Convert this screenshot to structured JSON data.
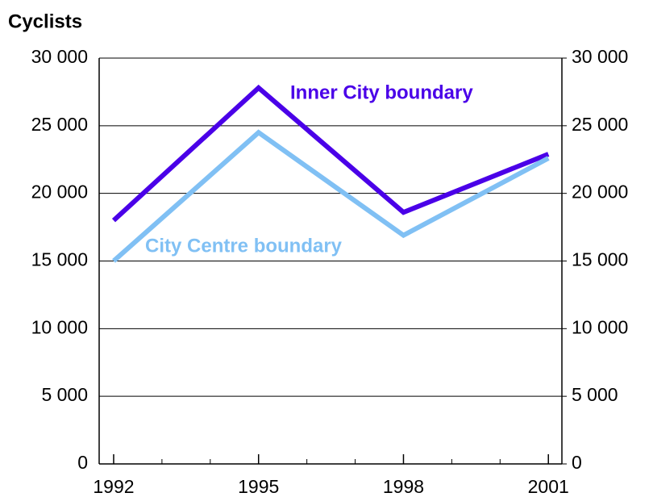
{
  "chart_data": {
    "type": "line",
    "title": "Cyclists",
    "x": [
      1992,
      1995,
      1998,
      2001
    ],
    "series": [
      {
        "name": "Inner City boundary",
        "color": "#4a00e8",
        "values": [
          18000,
          27800,
          18600,
          22900
        ]
      },
      {
        "name": "City Centre boundary",
        "color": "#80c0f4",
        "values": [
          15000,
          24500,
          16900,
          22600
        ]
      }
    ],
    "xlim": [
      1991.7,
      2001.28
    ],
    "xticks": [
      1992,
      1995,
      1998,
      2001
    ],
    "xminorticks": [
      1993,
      1994,
      1996,
      1997,
      1999,
      2000
    ],
    "ylim": [
      0,
      30000
    ],
    "yticks": [
      0,
      {
        "value": 5000,
        "label": "5 000"
      },
      {
        "value": 10000,
        "label": "10 000"
      },
      {
        "value": 15000,
        "label": "15 000"
      },
      {
        "value": 20000,
        "label": "20 000"
      },
      {
        "value": 25000,
        "label": "25 000"
      },
      {
        "value": 30000,
        "label": "30 000"
      }
    ],
    "y2lim": [
      0,
      30000
    ],
    "y2ticks": [
      0,
      {
        "value": 5000,
        "label": "5 000"
      },
      {
        "value": 10000,
        "label": "10 000"
      },
      {
        "value": 15000,
        "label": "15 000"
      },
      {
        "value": 20000,
        "label": "20 000"
      },
      {
        "value": 25000,
        "label": "25 000"
      },
      {
        "value": 30000,
        "label": "30 000"
      }
    ],
    "grid": true
  }
}
